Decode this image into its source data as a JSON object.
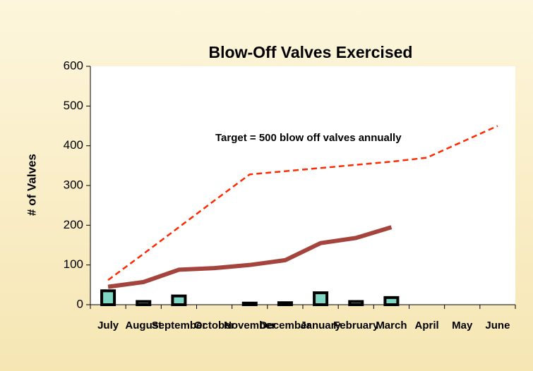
{
  "chart_data": {
    "type": "combo",
    "title": "Blow-Off Valves Exercised",
    "y_label": "# of Valves",
    "annotation": "Target =  500 blow off valves annually",
    "categories": [
      "July",
      "August",
      "September",
      "October",
      "November",
      "December",
      "January",
      "February",
      "March",
      "April",
      "May",
      "June"
    ],
    "series": [
      {
        "type": "bar",
        "color": "#7fd6c4",
        "values": [
          35,
          8,
          22,
          0,
          4,
          5,
          30,
          8,
          18,
          null,
          null,
          null
        ]
      },
      {
        "type": "line",
        "color": "#a5443d",
        "values": [
          45,
          57,
          88,
          92,
          100,
          112,
          155,
          168,
          195,
          null,
          null,
          null
        ]
      },
      {
        "type": "line",
        "color": "#ff2a00",
        "dashed": true,
        "values": [
          62,
          128,
          195,
          262,
          328,
          336,
          344,
          352,
          360,
          370,
          410,
          450
        ]
      }
    ],
    "ylim": [
      0,
      600
    ],
    "yticks": [
      0,
      100,
      200,
      300,
      400,
      500,
      600
    ],
    "grid": false
  }
}
